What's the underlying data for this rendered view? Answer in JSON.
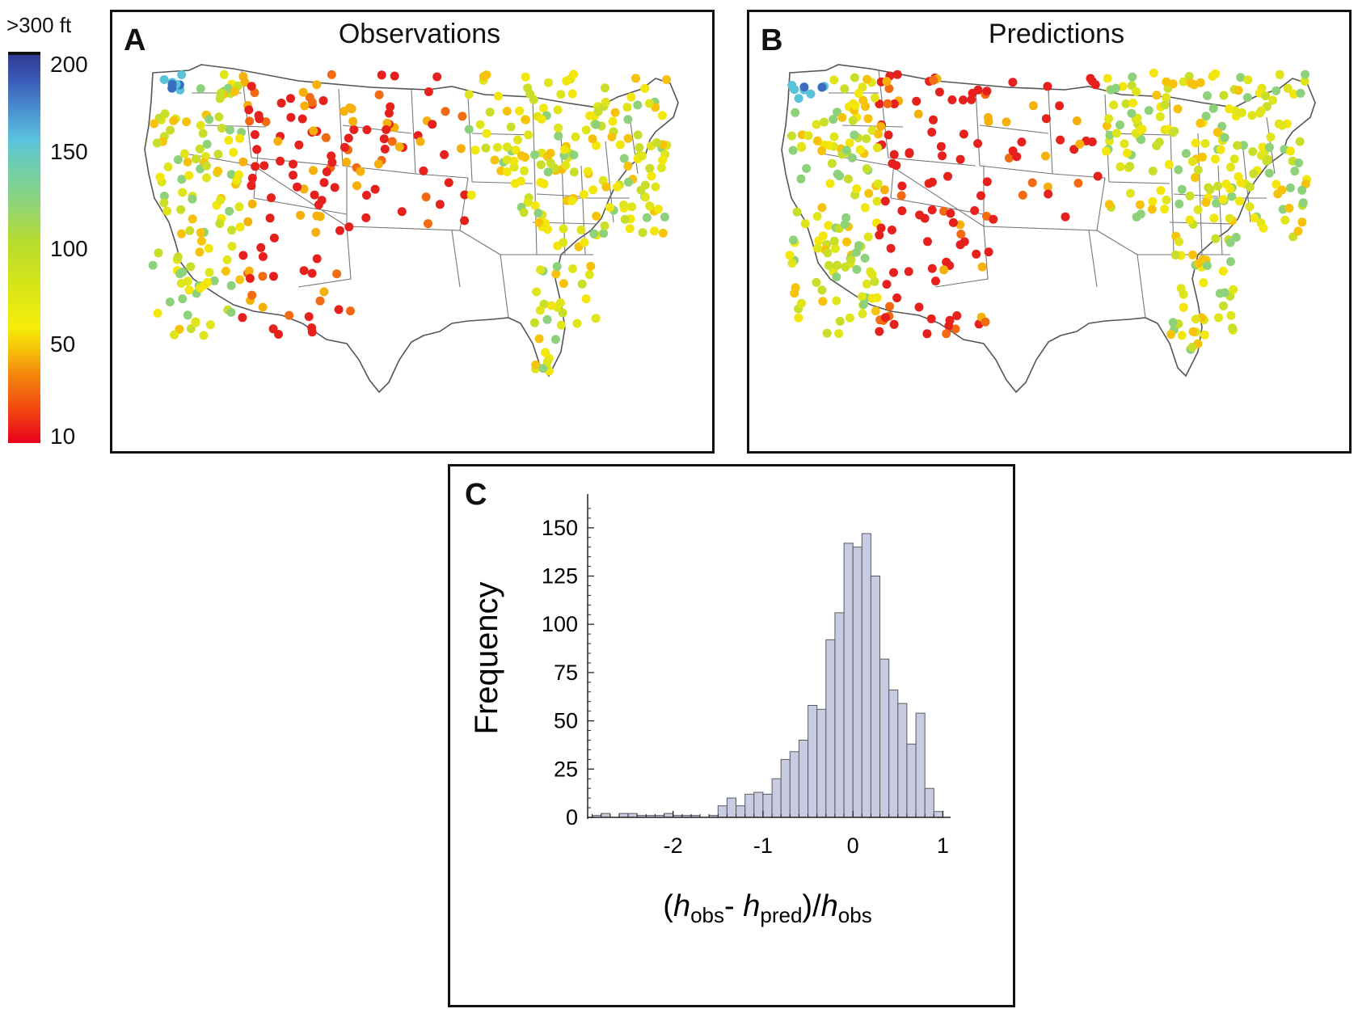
{
  "colorbar": {
    "top_label": ">300 ft",
    "ticks": [
      "200",
      "150",
      "100",
      "50",
      "10"
    ],
    "colors": {
      "max": "#2e3c94",
      "high": "#5ac4dc",
      "mid": "#b7dc2e",
      "low": "#f6c20a",
      "min": "#e8001c",
      "overflow": "#111111"
    }
  },
  "panel_a": {
    "letter": "A",
    "title": "Observations"
  },
  "panel_b": {
    "letter": "B",
    "title": "Predictions"
  },
  "panel_c": {
    "letter": "C"
  },
  "chart_data": {
    "type": "bar",
    "xlabel_parts": [
      "(",
      "h",
      "obs",
      "- ",
      "h",
      "pred",
      ")/",
      "h",
      "obs"
    ],
    "ylabel": "Frequency",
    "x_ticks": [
      "-2",
      "-1",
      "0",
      "1"
    ],
    "y_ticks": [
      "0",
      "25",
      "50",
      "75",
      "100",
      "125",
      "150"
    ],
    "xlim": [
      -2.95,
      1.05
    ],
    "ylim": [
      0,
      165
    ],
    "bar_color": "#c8cce2",
    "bin_width": 0.1,
    "bin_starts": [
      -2.9,
      -2.8,
      -2.7,
      -2.6,
      -2.5,
      -2.4,
      -2.3,
      -2.2,
      -2.1,
      -2.0,
      -1.9,
      -1.8,
      -1.7,
      -1.6,
      -1.5,
      -1.4,
      -1.3,
      -1.2,
      -1.1,
      -1.0,
      -0.9,
      -0.8,
      -0.7,
      -0.6,
      -0.5,
      -0.4,
      -0.3,
      -0.2,
      -0.1,
      0.0,
      0.1,
      0.2,
      0.3,
      0.4,
      0.5,
      0.6,
      0.7,
      0.8,
      0.9
    ],
    "values": [
      1,
      2,
      0,
      2,
      2,
      1,
      1,
      1,
      2,
      1,
      1,
      1,
      0,
      1,
      6,
      10,
      6,
      12,
      13,
      12,
      20,
      30,
      34,
      40,
      58,
      56,
      92,
      106,
      142,
      140,
      147,
      125,
      82,
      66,
      59,
      38,
      54,
      15,
      3
    ]
  }
}
